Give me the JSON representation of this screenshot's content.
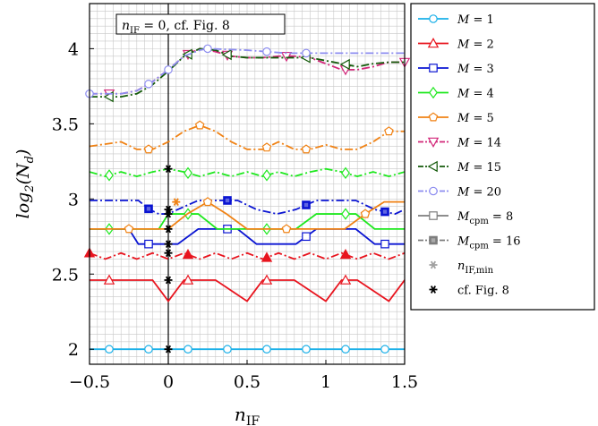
{
  "chart_data": {
    "type": "line",
    "xlabel": "n_IF",
    "ylabel": "log2(N_d)",
    "xlim": [
      -0.5,
      1.5
    ],
    "ylim": [
      1.9,
      4.3
    ],
    "x_ticks": [
      -0.5,
      0,
      0.5,
      1,
      1.5
    ],
    "x_tick_labels": [
      "−0.5",
      "0",
      "0.5",
      "1",
      "1.5"
    ],
    "y_ticks": [
      2,
      2.5,
      3,
      3.5,
      4
    ],
    "y_tick_labels": [
      "2",
      "2.5",
      "3",
      "3.5",
      "4"
    ],
    "grid": true,
    "legend_position": "right, outside",
    "annotation": {
      "text_main": "n",
      "text_sub": "IF",
      "text_rest": " = 0, cf. Fig. 8",
      "x": 0
    },
    "series": [
      {
        "name": "M = 1",
        "label_main": "M",
        "label_sub": "",
        "label_rest": " = 1",
        "color": "#1ab0e8",
        "dash": "solid",
        "marker": "circle",
        "x": [
          -0.5,
          1.5
        ],
        "y": [
          2.0,
          2.0
        ],
        "marker_x": [
          -0.375,
          -0.125,
          0.125,
          0.375,
          0.625,
          0.875,
          1.125,
          1.375
        ]
      },
      {
        "name": "M = 2",
        "label_main": "M",
        "label_sub": "",
        "label_rest": " = 2",
        "color": "#e8141e",
        "dash": "solid",
        "marker": "triangle",
        "x": [
          -0.5,
          -0.1,
          -0.05,
          0.0,
          0.05,
          0.1,
          0.2,
          0.3,
          0.4,
          0.5,
          0.55,
          0.6,
          0.65,
          0.7,
          0.8,
          0.9,
          1.0,
          1.05,
          1.1,
          1.15,
          1.2,
          1.3,
          1.4,
          1.5
        ],
        "y": [
          2.46,
          2.46,
          2.39,
          2.32,
          2.39,
          2.46,
          2.46,
          2.46,
          2.39,
          2.32,
          2.39,
          2.46,
          2.46,
          2.46,
          2.46,
          2.39,
          2.32,
          2.39,
          2.46,
          2.46,
          2.46,
          2.39,
          2.32,
          2.46
        ],
        "marker_x": [
          -0.375,
          0.125,
          0.625,
          1.125
        ]
      },
      {
        "name": "M = 3",
        "label_main": "M",
        "label_sub": "",
        "label_rest": " = 3",
        "color": "#0a14d2",
        "dash": "solid",
        "marker": "square",
        "x": [
          -0.5,
          -0.25,
          -0.19,
          -0.06,
          0.0,
          0.06,
          0.19,
          0.31,
          0.44,
          0.56,
          0.69,
          0.81,
          0.94,
          1.06,
          1.19,
          1.31,
          1.44,
          1.5
        ],
        "y": [
          2.8,
          2.8,
          2.7,
          2.7,
          2.7,
          2.7,
          2.8,
          2.8,
          2.8,
          2.7,
          2.7,
          2.7,
          2.8,
          2.8,
          2.8,
          2.7,
          2.7,
          2.7
        ],
        "marker_x": [
          -0.125,
          0.375,
          0.875,
          1.375
        ]
      },
      {
        "name": "M = 4",
        "label_main": "M",
        "label_sub": "",
        "label_rest": " = 4",
        "color": "#1ee81e",
        "dash": "solid",
        "marker": "diamond",
        "x": [
          -0.5,
          -0.06,
          0.0,
          0.06,
          0.19,
          0.31,
          0.44,
          0.56,
          0.69,
          0.81,
          0.94,
          1.06,
          1.19,
          1.31,
          1.5
        ],
        "y": [
          2.8,
          2.8,
          2.9,
          2.9,
          2.9,
          2.8,
          2.8,
          2.8,
          2.8,
          2.8,
          2.9,
          2.9,
          2.9,
          2.8,
          2.8
        ],
        "marker_x": [
          -0.375,
          0.125,
          0.625,
          1.125
        ]
      },
      {
        "name": "M = 5",
        "label_main": "M",
        "label_sub": "",
        "label_rest": " = 5",
        "color": "#f08214",
        "dash": "solid",
        "marker": "pentagon",
        "x": [
          -0.5,
          -0.25,
          -0.12,
          0.0,
          0.12,
          0.25,
          0.37,
          0.5,
          0.62,
          0.75,
          0.88,
          1.0,
          1.12,
          1.25,
          1.37,
          1.5
        ],
        "y": [
          2.8,
          2.8,
          2.8,
          2.8,
          2.9,
          2.98,
          2.9,
          2.8,
          2.8,
          2.8,
          2.8,
          2.8,
          2.8,
          2.9,
          2.98,
          2.98
        ],
        "marker_x": [
          -0.25,
          0.25,
          0.75,
          1.25
        ]
      },
      {
        "name": "M = 14",
        "label_main": "M",
        "label_sub": "",
        "label_rest": " = 14",
        "color": "#d2287a",
        "dash": "dashdot",
        "marker": "triangle-down",
        "x": [
          -0.5,
          -0.3,
          -0.2,
          -0.1,
          0.0,
          0.1,
          0.2,
          0.3,
          0.4,
          0.5,
          0.6,
          0.7,
          0.8,
          0.9,
          1.0,
          1.1,
          1.2,
          1.3,
          1.4,
          1.5
        ],
        "y": [
          3.7,
          3.7,
          3.72,
          3.78,
          3.86,
          3.95,
          4.0,
          3.98,
          3.95,
          3.94,
          3.94,
          3.95,
          3.95,
          3.94,
          3.9,
          3.86,
          3.86,
          3.88,
          3.91,
          3.91
        ],
        "marker_x": [
          -0.375,
          0.125,
          0.375,
          0.75,
          1.125,
          1.5
        ]
      },
      {
        "name": "M = 15",
        "label_main": "M",
        "label_sub": "",
        "label_rest": " = 15",
        "color": "#145a0a",
        "dash": "dashdot",
        "marker": "triangle-left",
        "x": [
          -0.5,
          -0.3,
          -0.2,
          -0.1,
          0.0,
          0.1,
          0.2,
          0.3,
          0.4,
          0.5,
          0.6,
          0.7,
          0.8,
          0.9,
          1.0,
          1.1,
          1.2,
          1.3,
          1.4,
          1.5
        ],
        "y": [
          3.68,
          3.68,
          3.7,
          3.76,
          3.85,
          3.95,
          4.0,
          3.99,
          3.95,
          3.94,
          3.94,
          3.94,
          3.94,
          3.94,
          3.92,
          3.9,
          3.88,
          3.9,
          3.91,
          3.91
        ],
        "marker_x": [
          -0.375,
          0.125,
          0.375,
          0.875,
          1.125
        ]
      },
      {
        "name": "M = 20",
        "label_main": "M",
        "label_sub": "",
        "label_rest": " = 20",
        "color": "#8c8cf0",
        "dash": "dashdot",
        "marker": "circle",
        "x": [
          -0.5,
          -0.3,
          -0.2,
          -0.1,
          0.0,
          0.1,
          0.2,
          0.25,
          0.5,
          0.75,
          1.0,
          1.25,
          1.5
        ],
        "y": [
          3.7,
          3.7,
          3.72,
          3.78,
          3.86,
          3.95,
          3.99,
          4.0,
          3.99,
          3.97,
          3.97,
          3.97,
          3.97
        ],
        "marker_x": [
          -0.5,
          -0.125,
          0.0,
          0.25,
          0.625,
          0.875
        ]
      },
      {
        "name": "M_cpm = 8",
        "label_main": "M",
        "label_sub": "cpm",
        "label_rest": " = 8",
        "color": "#7d7d7d",
        "dash": "solid",
        "marker": "square",
        "legend_only": true,
        "x": [],
        "y": [],
        "marker_x": []
      },
      {
        "name": "M_cpm = 16",
        "label_main": "M",
        "label_sub": "cpm",
        "label_rest": " = 16",
        "color": "#7d7d7d",
        "dash": "dashdot",
        "marker": "square-filled",
        "legend_only": true,
        "x": [],
        "y": [],
        "marker_x": []
      },
      {
        "name": "n_IF,min",
        "label_main": "n",
        "label_sub": "IF,min",
        "label_rest": "",
        "color": "#a0a0a0",
        "dash": "none",
        "marker": "star",
        "legend_only": false,
        "x": [],
        "y": [],
        "marker_x": []
      },
      {
        "name": "cf. Fig. 8",
        "label_main": "",
        "label_sub": "",
        "label_rest": "cf. Fig. 8",
        "color": "#000000",
        "dash": "none",
        "marker": "star",
        "legend_only": false,
        "x": [],
        "y": [],
        "marker_x": []
      }
    ],
    "extra_lines": [
      {
        "name": "M = 3 dashdot",
        "color": "#0a14d2",
        "dash": "dashdot",
        "marker": "square-filled",
        "x": [
          -0.5,
          -0.19,
          -0.12,
          -0.06,
          0.0,
          0.06,
          0.19,
          0.31,
          0.44,
          0.56,
          0.69,
          0.81,
          0.94,
          1.06,
          1.19,
          1.31,
          1.44,
          1.5
        ],
        "y": [
          2.99,
          2.99,
          2.93,
          2.9,
          2.9,
          2.93,
          2.99,
          2.99,
          2.99,
          2.93,
          2.9,
          2.93,
          2.99,
          2.99,
          2.99,
          2.93,
          2.9,
          2.93
        ],
        "marker_x": [
          -0.125,
          0.375,
          0.875,
          1.375
        ]
      },
      {
        "name": "M = 2 dashdot",
        "color": "#e8141e",
        "dash": "dashdot",
        "marker": "triangle-filled",
        "x": [
          -0.5,
          -0.4,
          -0.3,
          -0.2,
          -0.1,
          0.0,
          0.1,
          0.2,
          0.3,
          0.4,
          0.5,
          0.6,
          0.7,
          0.8,
          0.9,
          1.0,
          1.1,
          1.2,
          1.3,
          1.4,
          1.5
        ],
        "y": [
          2.64,
          2.6,
          2.64,
          2.6,
          2.64,
          2.6,
          2.64,
          2.6,
          2.64,
          2.6,
          2.64,
          2.6,
          2.64,
          2.6,
          2.64,
          2.6,
          2.64,
          2.6,
          2.64,
          2.6,
          2.64
        ],
        "marker_x": [
          -0.5,
          0.125,
          0.625,
          1.125
        ]
      },
      {
        "name": "M = 4 dashdot",
        "color": "#1ee81e",
        "dash": "dashdot",
        "marker": "diamond",
        "x": [
          -0.5,
          -0.4,
          -0.3,
          -0.2,
          -0.1,
          0.0,
          0.1,
          0.2,
          0.3,
          0.4,
          0.5,
          0.6,
          0.7,
          0.8,
          0.9,
          1.0,
          1.1,
          1.2,
          1.3,
          1.4,
          1.5
        ],
        "y": [
          3.18,
          3.15,
          3.18,
          3.15,
          3.18,
          3.2,
          3.18,
          3.15,
          3.18,
          3.15,
          3.18,
          3.15,
          3.18,
          3.15,
          3.18,
          3.2,
          3.18,
          3.15,
          3.18,
          3.15,
          3.18
        ],
        "marker_x": [
          -0.375,
          0.125,
          0.625,
          1.125
        ]
      },
      {
        "name": "M = 5 dashdot",
        "color": "#f08214",
        "dash": "dashdot",
        "marker": "pentagon",
        "x": [
          -0.5,
          -0.3,
          -0.2,
          -0.1,
          0.0,
          0.1,
          0.2,
          0.3,
          0.4,
          0.5,
          0.6,
          0.7,
          0.8,
          0.9,
          1.0,
          1.1,
          1.2,
          1.3,
          1.4,
          1.5
        ],
        "y": [
          3.35,
          3.38,
          3.33,
          3.33,
          3.38,
          3.45,
          3.49,
          3.45,
          3.38,
          3.33,
          3.33,
          3.38,
          3.33,
          3.33,
          3.36,
          3.33,
          3.33,
          3.38,
          3.45,
          3.45
        ],
        "marker_x": [
          -0.125,
          0.2,
          0.625,
          0.875,
          1.4
        ]
      }
    ],
    "nif_markers": {
      "star_black": [
        [
          0,
          2.0
        ],
        [
          0,
          2.46
        ],
        [
          0,
          2.64
        ],
        [
          0,
          2.7
        ],
        [
          0,
          2.8
        ],
        [
          0,
          2.9
        ],
        [
          0,
          2.93
        ],
        [
          0,
          3.2
        ]
      ],
      "star_gray": [
        [
          0.05,
          2.98
        ]
      ]
    }
  }
}
